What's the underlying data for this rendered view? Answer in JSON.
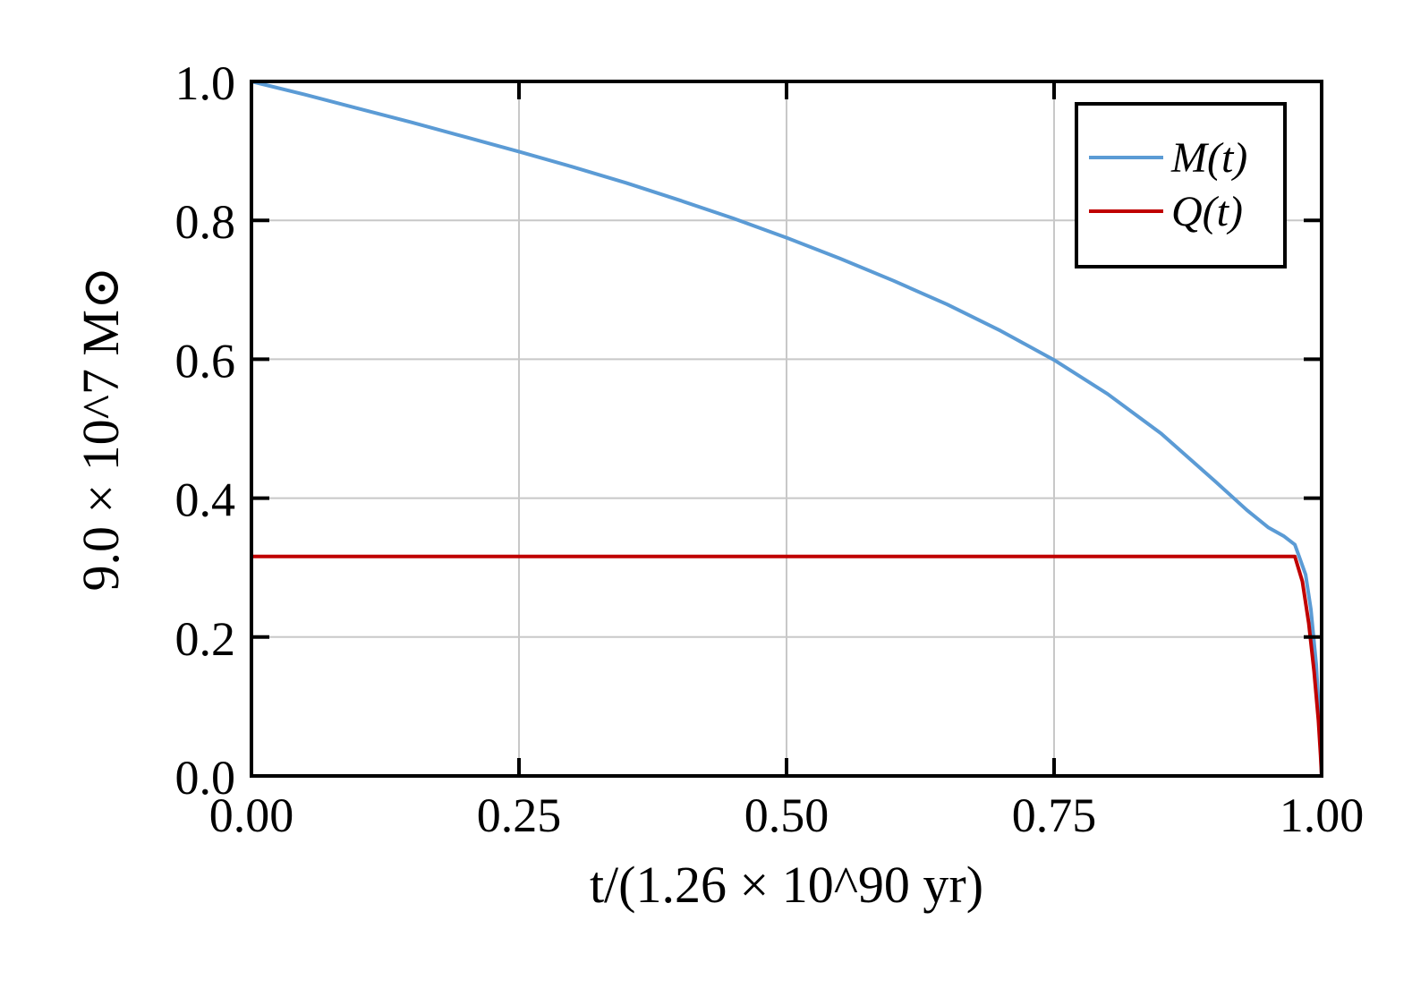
{
  "chart_data": {
    "type": "line",
    "title": "",
    "xlabel": "t/(1.26 × 10^90 yr)",
    "ylabel": "9.0 × 10^7 M⊙",
    "xlim": [
      0.0,
      1.0
    ],
    "ylim": [
      0.0,
      1.0
    ],
    "x_ticks": [
      "0.00",
      "0.25",
      "0.50",
      "0.75",
      "1.00"
    ],
    "y_ticks": [
      "0.0",
      "0.2",
      "0.4",
      "0.6",
      "0.8",
      "1.0"
    ],
    "x_tick_values": [
      0.0,
      0.25,
      0.5,
      0.75,
      1.0
    ],
    "y_tick_values": [
      0.0,
      0.2,
      0.4,
      0.6,
      0.8,
      1.0
    ],
    "grid": true,
    "legend_position": "top-right",
    "series": [
      {
        "name": "M(t)",
        "color": "#5b9bd5",
        "x": [
          0.0,
          0.05,
          0.1,
          0.15,
          0.2,
          0.25,
          0.3,
          0.35,
          0.4,
          0.45,
          0.5,
          0.55,
          0.6,
          0.65,
          0.7,
          0.75,
          0.8,
          0.85,
          0.9,
          0.93,
          0.95,
          0.965,
          0.975,
          0.985,
          0.99,
          0.995,
          0.998,
          1.0
        ],
        "y": [
          1.0,
          0.981,
          0.961,
          0.941,
          0.92,
          0.899,
          0.877,
          0.854,
          0.829,
          0.803,
          0.775,
          0.745,
          0.713,
          0.679,
          0.641,
          0.599,
          0.55,
          0.493,
          0.425,
          0.383,
          0.358,
          0.345,
          0.333,
          0.29,
          0.24,
          0.16,
          0.08,
          0.0
        ]
      },
      {
        "name": "Q(t)",
        "color": "#c00000",
        "x": [
          0.0,
          0.5,
          0.975,
          0.982,
          0.988,
          0.993,
          0.997,
          0.999,
          1.0
        ],
        "y": [
          0.316,
          0.316,
          0.316,
          0.28,
          0.22,
          0.15,
          0.08,
          0.03,
          0.0
        ]
      }
    ]
  }
}
